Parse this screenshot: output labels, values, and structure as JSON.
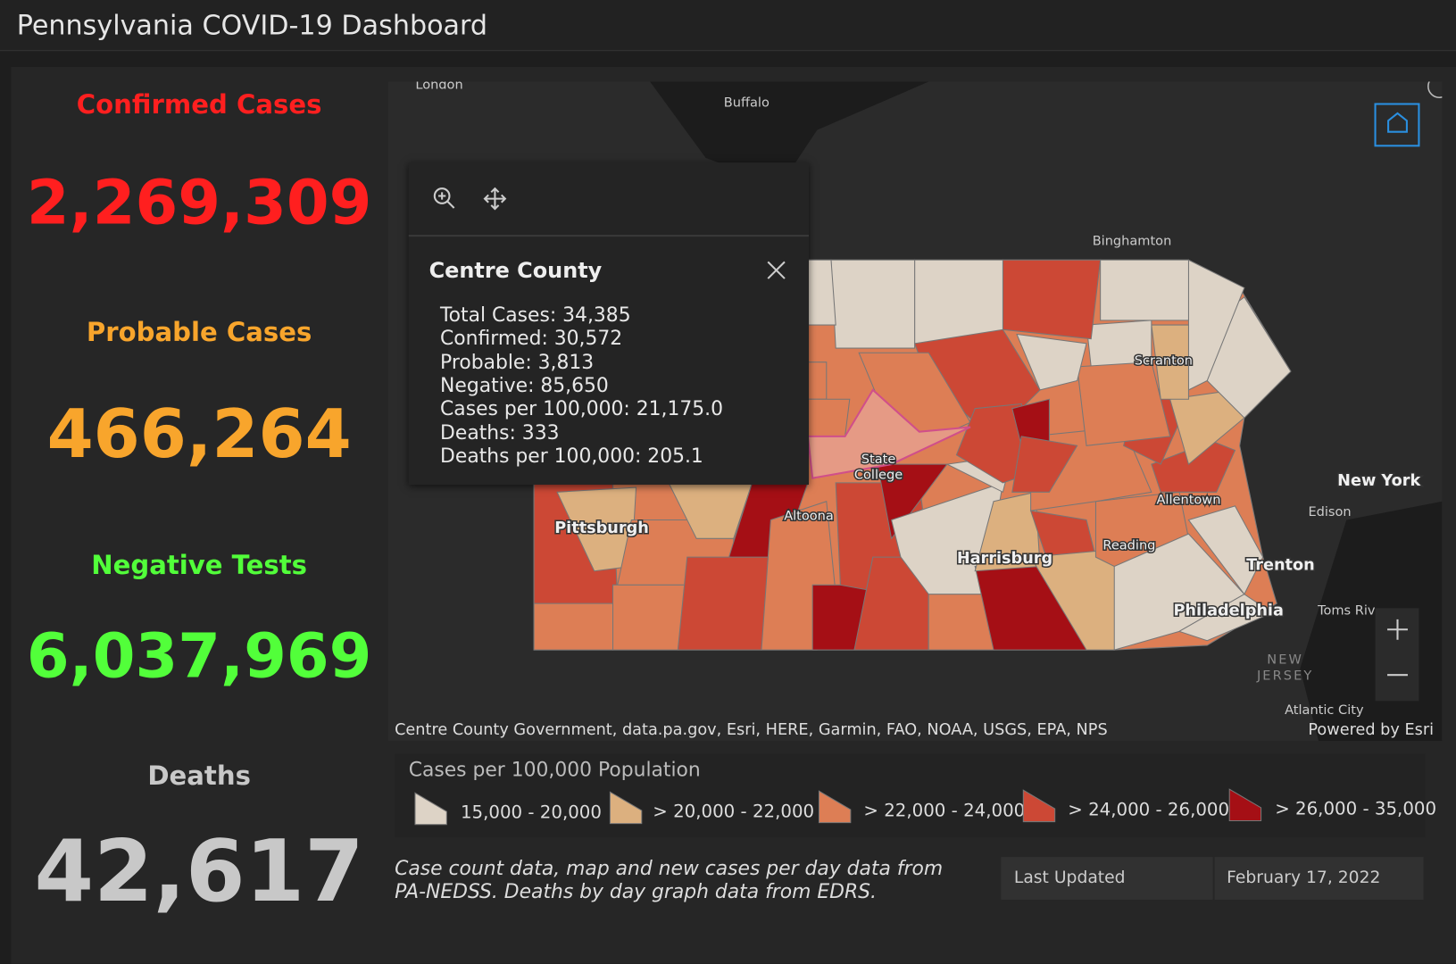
{
  "header": {
    "title": "Pennsylvania COVID-19 Dashboard"
  },
  "stats": [
    {
      "label": "Confirmed Cases",
      "value": "2,269,309"
    },
    {
      "label": "Probable Cases",
      "value": "466,264"
    },
    {
      "label": "Negative Tests",
      "value": "6,037,969"
    },
    {
      "label": "Deaths",
      "value": "42,617"
    }
  ],
  "map": {
    "labels": [
      "London",
      "Buffalo",
      "Binghamton",
      "Scranton",
      "Allentown",
      "Reading",
      "Harrisburg",
      "Philadelphia",
      "Trenton",
      "Edison",
      "New York",
      "Pittsburgh",
      "Altoona",
      "State",
      "College",
      "Toms Riv",
      "NEW",
      "JERSEY",
      "Atlantic City"
    ],
    "popup": {
      "title": "Centre County",
      "lines": [
        "Total Cases: 34,385",
        "Confirmed: 30,572",
        "Probable: 3,813",
        "Negative: 85,650",
        "Cases per 100,000: 21,175.0",
        "Deaths: 333",
        "Deaths per 100,000: 205.1"
      ]
    },
    "attribution": "Centre County Government, data.pa.gov, Esri, HERE, Garmin, FAO, NOAA, USGS, EPA, NPS",
    "powered_by": "Powered by Esri"
  },
  "legend": {
    "title": "Cases per 100,000 Population",
    "items": [
      "15,000 - 20,000",
      "> 20,000 - 22,000",
      "> 22,000 - 24,000",
      "> 24,000 - 26,000",
      "> 26,000 - 35,000"
    ]
  },
  "note": "Case count data, map and new cases per day data from PA-NEDSS.  Deaths by day graph data from EDRS.",
  "last_updated": {
    "label": "Last Updated",
    "value": "February 17, 2022"
  }
}
